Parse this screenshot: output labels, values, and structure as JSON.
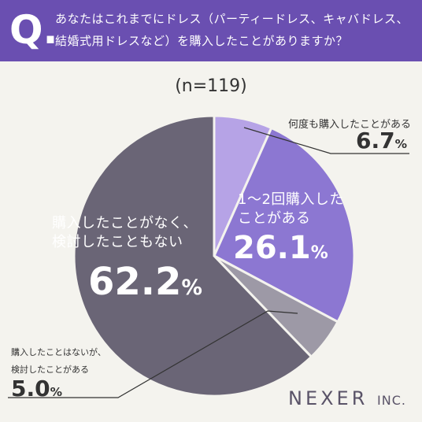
{
  "question": {
    "mark": "Q.",
    "lines": [
      "あなたはこれまでにドレス（パーティードレス、キャバドレス、",
      "結婚式用ドレスなど）を購入したことがありますか？"
    ]
  },
  "sample_size": "(n=119)",
  "chart_data": {
    "type": "pie",
    "start": "12 o'clock",
    "direction": "clockwise",
    "slices": [
      {
        "label": "何度も購入したことがある",
        "value": 6.7,
        "value_text": "6.7",
        "unit": "%",
        "color": "#b6a3e6"
      },
      {
        "label_lines": [
          "1〜2回購入した",
          "ことがある"
        ],
        "value": 26.1,
        "value_text": "26.1",
        "unit": "%",
        "color": "#8c77d2"
      },
      {
        "label_lines": [
          "購入したことはないが、",
          "検討したことがある"
        ],
        "value": 5.0,
        "value_text": "5.0",
        "unit": "%",
        "color": "#9d99a6"
      },
      {
        "label_lines": [
          "購入したことがなく、",
          "検討したこともない"
        ],
        "value": 62.2,
        "value_text": "62.2",
        "unit": "%",
        "color": "#6a6576"
      }
    ]
  },
  "brand": {
    "name": "NEXER",
    "suffix": "INC."
  }
}
